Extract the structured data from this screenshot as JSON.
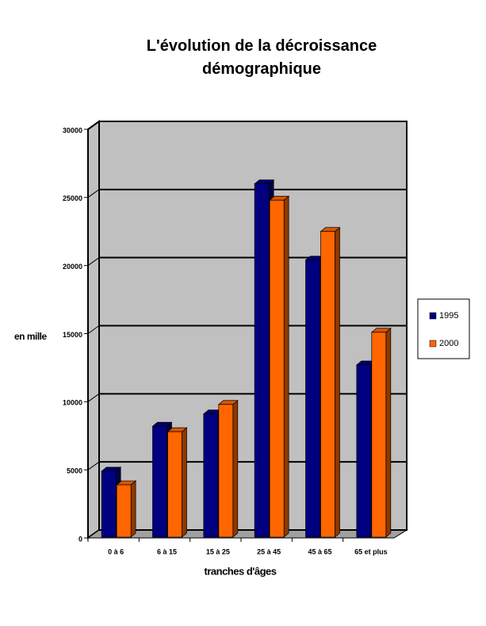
{
  "chart_data": {
    "type": "bar3d",
    "title": "L'évolution de la décroissance démographique",
    "x_label": "tranches d'âges",
    "y_label": "en mille",
    "categories": [
      "0 à 6",
      "6 à 15",
      "15 à 25",
      "25 à 45",
      "45 à 65",
      "65 et plus"
    ],
    "series": [
      {
        "name": "1995",
        "color": "#000080",
        "values": [
          4900,
          8200,
          9100,
          26000,
          20400,
          12700
        ]
      },
      {
        "name": "2000",
        "color": "#ff6600",
        "values": [
          3900,
          7800,
          9800,
          24800,
          22500,
          15100
        ]
      }
    ],
    "ylim": [
      0,
      30000
    ],
    "yticks": [
      0,
      5000,
      10000,
      15000,
      20000,
      25000,
      30000
    ],
    "grid": true,
    "legend": "right"
  }
}
